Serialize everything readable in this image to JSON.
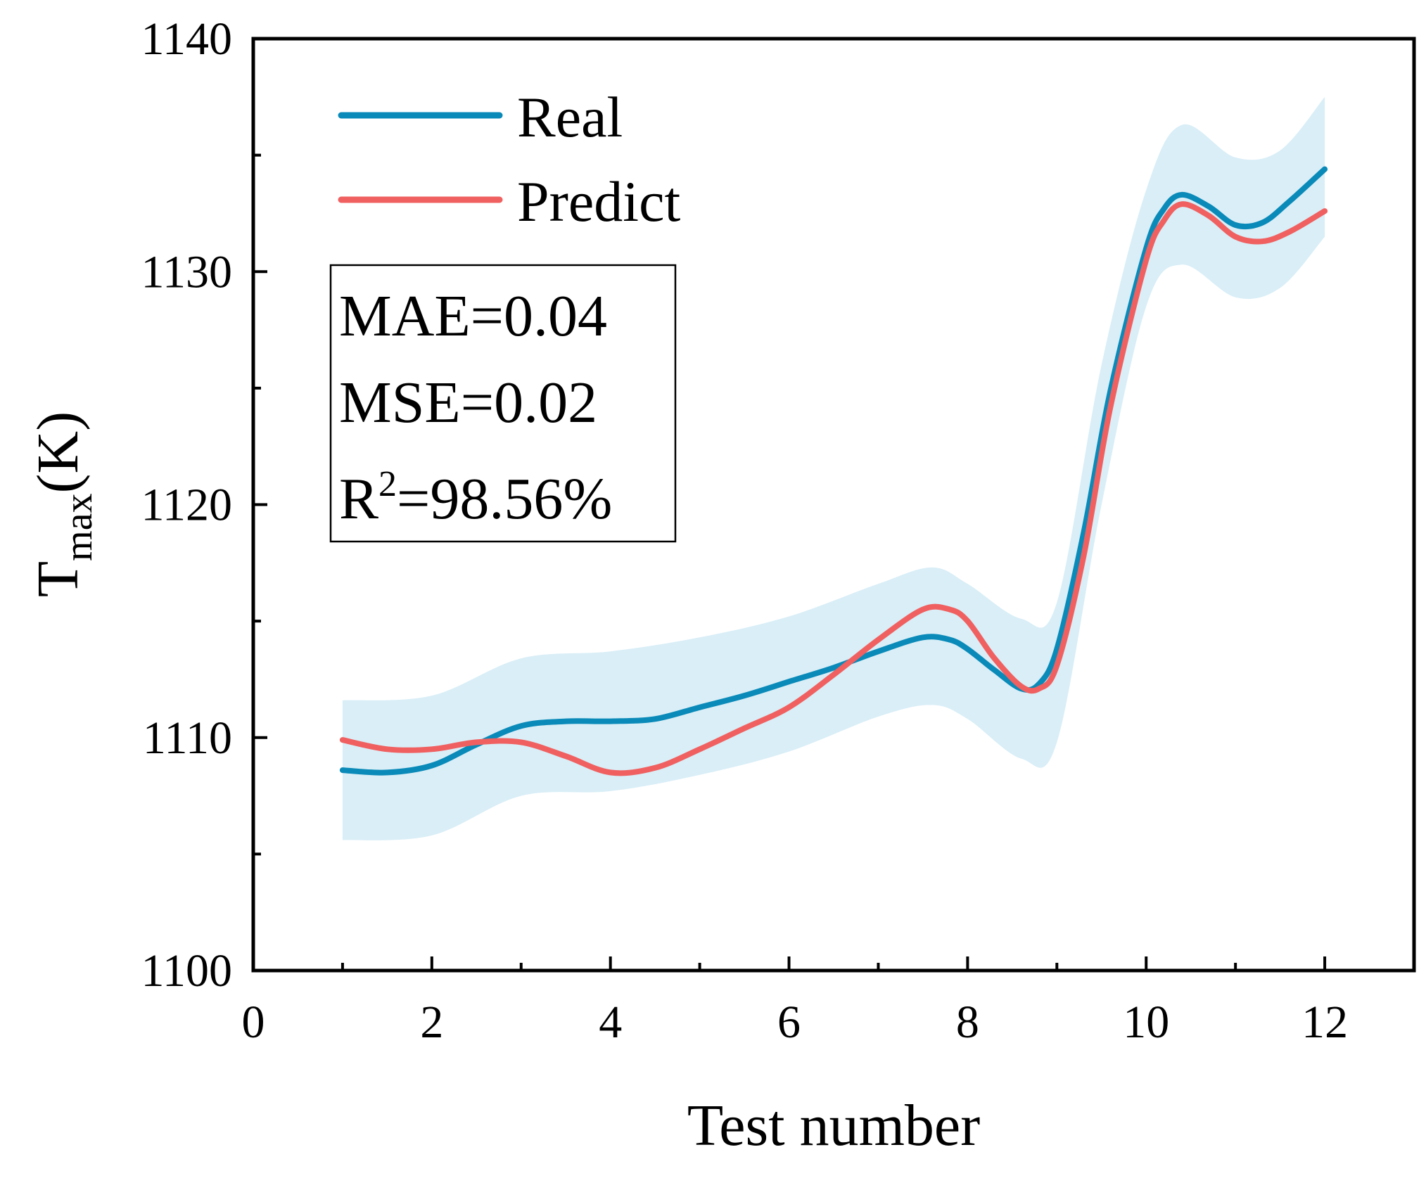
{
  "chart_data": {
    "type": "line",
    "title": "",
    "xlabel": "Test number",
    "ylabel": {
      "main": "T",
      "sub": "max",
      "suffix": "(K)"
    },
    "xlim": [
      0,
      13
    ],
    "ylim": [
      1100,
      1140
    ],
    "xticks": [
      0,
      2,
      4,
      6,
      8,
      10,
      12
    ],
    "xtick_labels": [
      "0",
      "2",
      "4",
      "6",
      "8",
      "10",
      "12"
    ],
    "xminor": [
      1,
      3,
      5,
      7,
      9,
      11
    ],
    "yticks": [
      1100,
      1110,
      1120,
      1130,
      1140
    ],
    "ytick_labels": [
      "1100",
      "1110",
      "1120",
      "1130",
      "1140"
    ],
    "yminor": [
      1105,
      1115,
      1125,
      1135
    ],
    "grid": false,
    "legend": {
      "position": "top-left",
      "entries": [
        {
          "name": "Real",
          "color": "#0a8ab8"
        },
        {
          "name": "Predict",
          "color": "#f06060"
        }
      ]
    },
    "metrics": {
      "mae": "MAE=0.04",
      "mse": "MSE=0.02",
      "r2_prefix": "R",
      "r2_sup": "2",
      "r2_suffix": "=98.56%"
    },
    "band": {
      "name": "confidence band",
      "color": "#d9eef7",
      "x": [
        1,
        2,
        3,
        4,
        5,
        6,
        7,
        7.6,
        8,
        8.6,
        9,
        9.5,
        10,
        10.4,
        11,
        11.5,
        12
      ],
      "upper": [
        1111.6,
        1111.8,
        1113.4,
        1113.7,
        1114.3,
        1115.2,
        1116.6,
        1117.3,
        1116.6,
        1115.1,
        1115.8,
        1126.0,
        1133.5,
        1136.3,
        1134.9,
        1135.2,
        1137.5
      ],
      "lower": [
        1105.6,
        1105.8,
        1107.5,
        1107.7,
        1108.4,
        1109.4,
        1110.9,
        1111.4,
        1110.8,
        1109.1,
        1109.8,
        1120.0,
        1128.5,
        1130.3,
        1128.9,
        1129.3,
        1131.5
      ]
    },
    "series": [
      {
        "name": "Real",
        "color": "#0a8ab8",
        "x": [
          1,
          1.5,
          2,
          2.5,
          3,
          3.5,
          4,
          4.5,
          5,
          5.5,
          6,
          6.5,
          7,
          7.5,
          7.8,
          8,
          8.3,
          8.6,
          8.8,
          9,
          9.3,
          9.6,
          10,
          10.2,
          10.4,
          10.7,
          11,
          11.3,
          11.6,
          12
        ],
        "values": [
          1108.6,
          1108.5,
          1108.8,
          1109.7,
          1110.5,
          1110.7,
          1110.7,
          1110.8,
          1111.3,
          1111.8,
          1112.4,
          1113.0,
          1113.7,
          1114.3,
          1114.2,
          1113.8,
          1112.9,
          1112.1,
          1112.3,
          1113.8,
          1118.8,
          1124.9,
          1131.0,
          1132.7,
          1133.3,
          1132.8,
          1132.0,
          1132.1,
          1133.0,
          1134.4
        ]
      },
      {
        "name": "Predict",
        "color": "#f06060",
        "x": [
          1,
          1.5,
          2,
          2.5,
          3,
          3.5,
          4,
          4.5,
          5,
          5.5,
          6,
          6.5,
          7,
          7.5,
          7.8,
          8,
          8.3,
          8.6,
          8.8,
          9,
          9.3,
          9.6,
          10,
          10.2,
          10.4,
          10.7,
          11,
          11.3,
          11.6,
          12
        ],
        "values": [
          1109.9,
          1109.5,
          1109.5,
          1109.8,
          1109.8,
          1109.2,
          1108.5,
          1108.7,
          1109.5,
          1110.4,
          1111.3,
          1112.7,
          1114.2,
          1115.5,
          1115.5,
          1115.0,
          1113.4,
          1112.2,
          1112.1,
          1113.1,
          1117.8,
          1124.2,
          1130.5,
          1132.2,
          1132.9,
          1132.4,
          1131.5,
          1131.3,
          1131.7,
          1132.6
        ]
      }
    ]
  }
}
